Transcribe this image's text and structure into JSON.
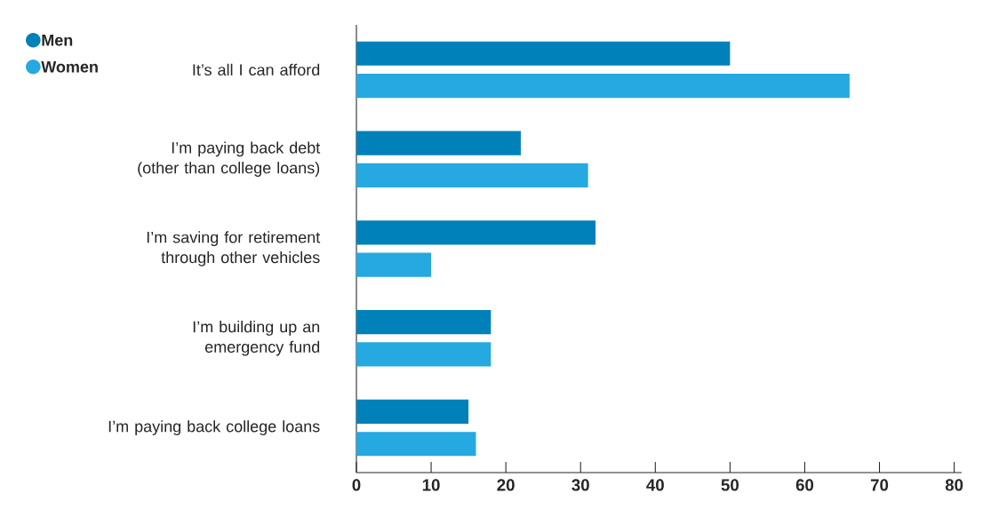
{
  "chart_data": {
    "type": "bar",
    "orientation": "horizontal",
    "categories": [
      "It’s all I can afford",
      "I’m paying back debt (other than college loans)",
      "I’m saving for retirement through other vehicles",
      "I’m building up an emergency fund",
      "I’m paying back college loans"
    ],
    "series": [
      {
        "name": "Men",
        "color": "#0081b9",
        "values": [
          50,
          22,
          32,
          18,
          15
        ]
      },
      {
        "name": "Women",
        "color": "#25a9e0",
        "values": [
          66,
          31,
          10,
          18,
          16
        ]
      }
    ],
    "xlim": [
      0,
      81
    ],
    "xticks": [
      0,
      10,
      20,
      30,
      40,
      50,
      60,
      70,
      80
    ],
    "grid": false,
    "legend": "top left"
  }
}
